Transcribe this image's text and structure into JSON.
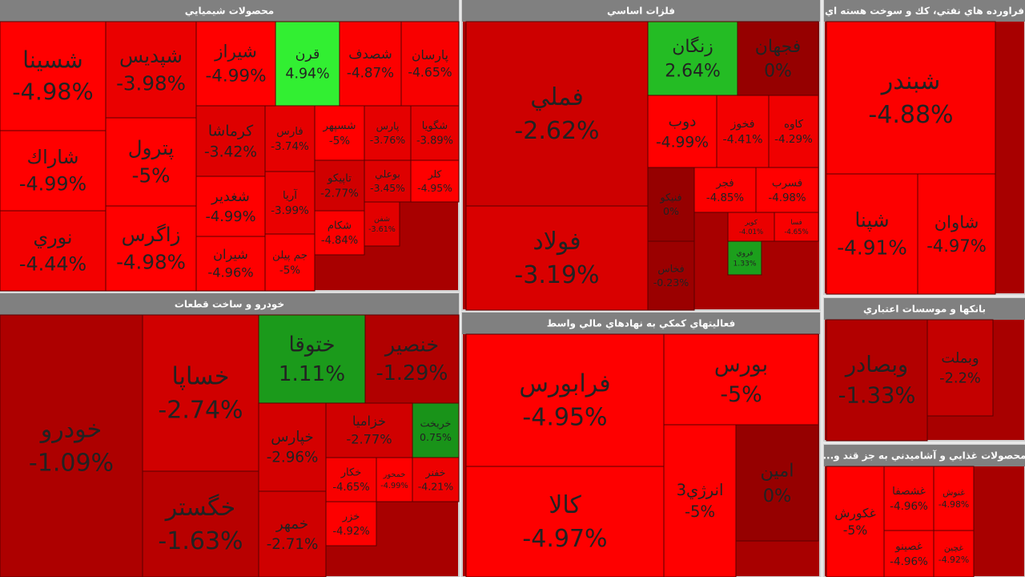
{
  "chart_data": {
    "type": "treemap",
    "sectors": [
      {
        "title": "محصولات شيميايي",
        "tiles": [
          {
            "name": "شسينا",
            "value": -4.98,
            "label": "-4.98%"
          },
          {
            "name": "شاراك",
            "value": -4.99,
            "label": "-4.99%"
          },
          {
            "name": "نوري",
            "value": -4.44,
            "label": "-4.44%"
          },
          {
            "name": "شپديس",
            "value": -3.98,
            "label": "-3.98%"
          },
          {
            "name": "پترول",
            "value": -5,
            "label": "-5%"
          },
          {
            "name": "زاگرس",
            "value": -4.98,
            "label": "-4.98%"
          },
          {
            "name": "شيراز",
            "value": -4.99,
            "label": "-4.99%"
          },
          {
            "name": "قرن",
            "value": 4.94,
            "label": "4.94%"
          },
          {
            "name": "شصدف",
            "value": -4.87,
            "label": "-4.87%"
          },
          {
            "name": "پارسان",
            "value": -4.65,
            "label": "-4.65%"
          },
          {
            "name": "كرماشا",
            "value": -3.42,
            "label": "-3.42%"
          },
          {
            "name": "شغدير",
            "value": -4.99,
            "label": "-4.99%"
          },
          {
            "name": "شيران",
            "value": -4.96,
            "label": "-4.96%"
          },
          {
            "name": "فارس",
            "value": -3.74,
            "label": "-3.74%"
          },
          {
            "name": "شسپهر",
            "value": -5,
            "label": "-5%"
          },
          {
            "name": "پارس",
            "value": -3.76,
            "label": "-3.76%"
          },
          {
            "name": "شگويا",
            "value": -3.89,
            "label": "-3.89%"
          },
          {
            "name": "آريا",
            "value": -3.99,
            "label": "-3.99%"
          },
          {
            "name": "تاپيكو",
            "value": -2.77,
            "label": "-2.77%"
          },
          {
            "name": "بوعلي",
            "value": -3.45,
            "label": "-3.45%"
          },
          {
            "name": "كلر",
            "value": -4.95,
            "label": "-4.95%"
          },
          {
            "name": "شكام",
            "value": -4.84,
            "label": "-4.84%"
          },
          {
            "name": "جم پيلن",
            "value": -5,
            "label": "-5%"
          },
          {
            "name": "شفن",
            "value": -3.61,
            "label": "-3.61%"
          }
        ]
      },
      {
        "title": "خودرو و ساخت قطعات",
        "tiles": [
          {
            "name": "خودرو",
            "value": -1.09,
            "label": "-1.09%"
          },
          {
            "name": "خساپا",
            "value": -2.74,
            "label": "-2.74%"
          },
          {
            "name": "خگستر",
            "value": -1.63,
            "label": "-1.63%"
          },
          {
            "name": "ختوقا",
            "value": 1.11,
            "label": "1.11%"
          },
          {
            "name": "خنصير",
            "value": -1.29,
            "label": "-1.29%"
          },
          {
            "name": "خپارس",
            "value": -2.96,
            "label": "-2.96%"
          },
          {
            "name": "خزاميا",
            "value": -2.77,
            "label": "-2.77%"
          },
          {
            "name": "خريخت",
            "value": 0.75,
            "label": "0.75%"
          },
          {
            "name": "خمهر",
            "value": -2.71,
            "label": "-2.71%"
          },
          {
            "name": "خكار",
            "value": -4.65,
            "label": "-4.65%"
          },
          {
            "name": "خمحور",
            "value": -4.99,
            "label": "-4.99%"
          },
          {
            "name": "خفنر",
            "value": -4.21,
            "label": "-4.21%"
          },
          {
            "name": "خزر",
            "value": -4.92,
            "label": "-4.92%"
          }
        ]
      },
      {
        "title": "فلزات اساسي",
        "tiles": [
          {
            "name": "فملي",
            "value": -2.62,
            "label": "-2.62%"
          },
          {
            "name": "فولاد",
            "value": -3.19,
            "label": "-3.19%"
          },
          {
            "name": "زنگان",
            "value": 2.64,
            "label": "2.64%"
          },
          {
            "name": "فجهان",
            "value": 0,
            "label": "0%"
          },
          {
            "name": "دوب",
            "value": -4.99,
            "label": "-4.99%"
          },
          {
            "name": "فخوز",
            "value": -4.41,
            "label": "-4.41%"
          },
          {
            "name": "كاوه",
            "value": -4.29,
            "label": "-4.29%"
          },
          {
            "name": "فنيكو",
            "value": 0,
            "label": "0%"
          },
          {
            "name": "فجر",
            "value": -4.85,
            "label": "-4.85%"
          },
          {
            "name": "فسرب",
            "value": -4.98,
            "label": "-4.98%"
          },
          {
            "name": "فخاس",
            "value": -0.23,
            "label": "-0.23%"
          },
          {
            "name": "كوير",
            "value": -4.01,
            "label": "-4.01%"
          },
          {
            "name": "فسا",
            "value": -4.65,
            "label": "-4.65%"
          },
          {
            "name": "فروي",
            "value": 1.33,
            "label": "1.33%"
          }
        ]
      },
      {
        "title": "فراورده هاي نفتي، كك و سوخت هسته اي",
        "tiles": [
          {
            "name": "شبندر",
            "value": -4.88,
            "label": "-4.88%"
          },
          {
            "name": "شپنا",
            "value": -4.91,
            "label": "-4.91%"
          },
          {
            "name": "شاوان",
            "value": -4.97,
            "label": "-4.97%"
          }
        ]
      },
      {
        "title": "بانكها و موسسات اعتباري",
        "tiles": [
          {
            "name": "وبصادر",
            "value": -1.33,
            "label": "-1.33%"
          },
          {
            "name": "وبملت",
            "value": -2.2,
            "label": "-2.2%"
          }
        ]
      },
      {
        "title": "...محصولات غذايي و آشاميدني به جز قند و",
        "tiles": [
          {
            "name": "غكورش",
            "value": -5,
            "label": "-5%"
          },
          {
            "name": "غشصفا",
            "value": -4.96,
            "label": "-4.96%"
          },
          {
            "name": "غنوش",
            "value": -4.98,
            "label": "-4.98%"
          },
          {
            "name": "غصينو",
            "value": -4.96,
            "label": "-4.96%"
          },
          {
            "name": "غچين",
            "value": -4.92,
            "label": "-4.92%"
          }
        ]
      },
      {
        "title": "فعاليتهاي كمكي به نهادهاي مالي واسط",
        "tiles": [
          {
            "name": "فرابورس",
            "value": -4.95,
            "label": "-4.95%"
          },
          {
            "name": "كالا",
            "value": -4.97,
            "label": "-4.97%"
          },
          {
            "name": "بورس",
            "value": -5,
            "label": "-5%"
          },
          {
            "name": "انرژي3",
            "value": -5,
            "label": "-5%"
          },
          {
            "name": "امين",
            "value": 0,
            "label": "0%"
          }
        ]
      }
    ]
  }
}
